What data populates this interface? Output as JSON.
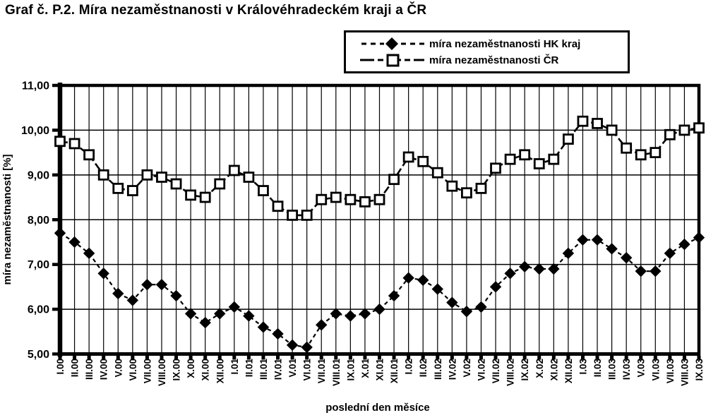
{
  "title": "Graf č. P.2. Míra nezaměstnanosti v Královéhradeckém kraji a ČR",
  "colors": {
    "foreground": "#000000",
    "background": "#ffffff"
  },
  "chart_data": {
    "type": "line",
    "title": "Graf č. P.2. Míra nezaměstnanosti v Královéhradeckém kraji a ČR",
    "xlabel": "poslední den měsíce",
    "ylabel": "míra nezaměstnanosti [%]",
    "ylim": [
      5,
      11
    ],
    "ytick_step": 1,
    "ytick_labels": [
      "5,00",
      "6,00",
      "7,00",
      "8,00",
      "9,00",
      "10,00",
      "11,00"
    ],
    "grid": true,
    "legend_position": "top-right",
    "categories": [
      "I.00",
      "II.00",
      "III.00",
      "IV.00",
      "V.00",
      "VI.00",
      "VII.00",
      "VIII.00",
      "IX.00",
      "X.00",
      "XI.00",
      "XII.00",
      "I.01",
      "II.01",
      "III.01",
      "IV.01",
      "V.01",
      "VI.01",
      "VII.01",
      "VIII.01",
      "IX.01",
      "X.01",
      "XI.01",
      "XII.01",
      "I.02",
      "II.02",
      "III.02",
      "IV.02",
      "V.02",
      "VI.02",
      "VII.02",
      "VIII.02",
      "IX.02",
      "X.02",
      "XI.02",
      "XII.02",
      "I.03",
      "II.03",
      "III.03",
      "IV.03",
      "V.03",
      "VI.03",
      "VII.03",
      "VIII.03",
      "IX.03"
    ],
    "series": [
      {
        "name": "míra nezaměstnanosti HK kraj",
        "marker": "filled-diamond",
        "line": "dashed",
        "color": "#000000",
        "values": [
          7.7,
          7.5,
          7.25,
          6.8,
          6.35,
          6.2,
          6.55,
          6.55,
          6.3,
          5.9,
          5.7,
          5.9,
          6.05,
          5.85,
          5.6,
          5.45,
          5.2,
          5.15,
          5.65,
          5.9,
          5.85,
          5.9,
          6.0,
          6.3,
          6.7,
          6.65,
          6.45,
          6.15,
          5.95,
          6.05,
          6.5,
          6.8,
          6.95,
          6.9,
          6.9,
          7.25,
          7.55,
          7.55,
          7.35,
          7.15,
          6.85,
          6.85,
          7.25,
          7.45,
          7.6
        ]
      },
      {
        "name": "míra nezaměstnanosti ČR",
        "marker": "open-square",
        "line": "dashed",
        "color": "#000000",
        "values": [
          9.75,
          9.7,
          9.45,
          9.0,
          8.7,
          8.65,
          9.0,
          8.95,
          8.8,
          8.55,
          8.5,
          8.8,
          9.1,
          8.95,
          8.65,
          8.3,
          8.1,
          8.1,
          8.45,
          8.5,
          8.45,
          8.4,
          8.45,
          8.9,
          9.4,
          9.3,
          9.05,
          8.75,
          8.6,
          8.7,
          9.15,
          9.35,
          9.45,
          9.25,
          9.35,
          9.8,
          10.2,
          10.15,
          10.0,
          9.6,
          9.45,
          9.5,
          9.9,
          10.0,
          10.05
        ]
      }
    ]
  }
}
